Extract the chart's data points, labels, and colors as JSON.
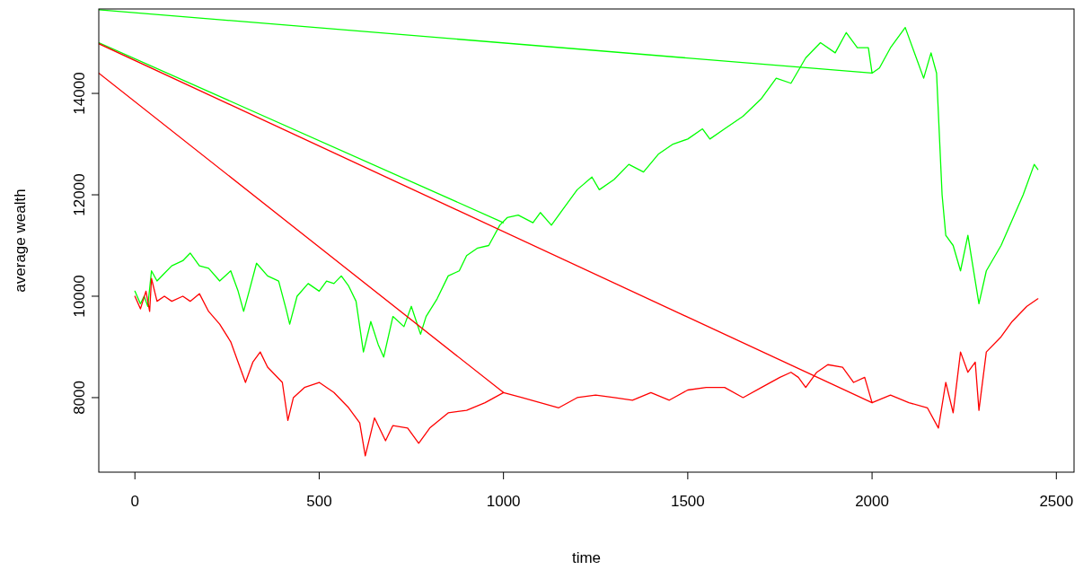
{
  "chart_data": {
    "type": "line",
    "xlabel": "time",
    "ylabel": "average wealth",
    "xlim": [
      -98,
      2548
    ],
    "ylim": [
      6530,
      15665
    ],
    "xticks": [
      0,
      500,
      1000,
      1500,
      2000,
      2500
    ],
    "yticks": [
      8000,
      10000,
      12000,
      14000
    ],
    "grid": false,
    "marker": "none",
    "line_style": "solid",
    "series": [
      {
        "color": "#00ff00",
        "x": [
          0,
          15,
          25,
          35,
          45,
          60,
          80,
          100,
          130,
          150,
          175,
          200,
          230,
          260,
          280,
          295,
          310,
          330,
          360,
          390,
          410,
          420,
          440,
          470,
          500,
          520,
          540,
          560,
          580,
          600,
          620,
          640,
          660,
          675,
          700,
          730,
          750,
          775,
          790,
          820,
          850,
          880,
          900,
          930,
          960,
          990,
          1010,
          1040,
          1080,
          1100,
          1130,
          1160,
          1200,
          1240,
          1260,
          1300,
          1340,
          1380,
          1420,
          1460,
          1500,
          1540,
          1560,
          1600,
          1650,
          1700,
          1740,
          1780,
          1820,
          1860,
          1900,
          1930,
          1960,
          1990,
          2000,
          2020,
          2050,
          2090,
          2120,
          2140,
          2160,
          2175,
          2190,
          2200,
          2220,
          2240,
          2260,
          2280,
          2290,
          2310,
          2350,
          2380,
          2410,
          2440,
          2450
        ],
        "values": [
          10100,
          9850,
          10000,
          9800,
          10500,
          10300,
          10450,
          10600,
          10700,
          10850,
          10600,
          10550,
          10300,
          10500,
          10100,
          9700,
          10100,
          10650,
          10400,
          10300,
          9750,
          9450,
          10000,
          10250,
          10100,
          10300,
          10250,
          10400,
          10200,
          9900,
          8900,
          9500,
          9050,
          8800,
          9600,
          9400,
          9800,
          9250,
          9600,
          9950,
          10400,
          10500,
          10800,
          10950,
          11000,
          11400,
          11550,
          11600,
          11450,
          11650,
          11400,
          11700,
          12100,
          12350,
          12100,
          12300,
          12600,
          12450,
          12800,
          13000,
          13100,
          13300,
          13100,
          13300,
          13550,
          13900,
          14300,
          14200,
          14700,
          15000,
          14800,
          15200,
          14900,
          14900,
          14400,
          14500,
          14900,
          15300,
          14700,
          14300,
          14800,
          14400,
          12000,
          11200,
          11000,
          10500,
          11200,
          10300,
          9850,
          10500,
          11000,
          11500,
          12000,
          12600,
          12500
        ]
      },
      {
        "color": "#ff0000",
        "x": [
          0,
          15,
          30,
          40,
          45,
          60,
          80,
          100,
          130,
          150,
          175,
          200,
          230,
          260,
          280,
          300,
          320,
          340,
          360,
          400,
          415,
          430,
          460,
          500,
          540,
          580,
          610,
          625,
          650,
          680,
          700,
          740,
          770,
          800,
          850,
          900,
          950,
          1000,
          1050,
          1100,
          1150,
          1200,
          1250,
          1300,
          1350,
          1400,
          1450,
          1500,
          1550,
          1600,
          1650,
          1700,
          1750,
          1780,
          1800,
          1820,
          1850,
          1880,
          1920,
          1950,
          1980,
          2000,
          2050,
          2100,
          2150,
          2180,
          2200,
          2220,
          2240,
          2260,
          2280,
          2290,
          2310,
          2350,
          2380,
          2420,
          2450
        ],
        "values": [
          10000,
          9750,
          10100,
          9700,
          10350,
          9900,
          10000,
          9900,
          10000,
          9900,
          10050,
          9700,
          9450,
          9100,
          8700,
          8300,
          8700,
          8900,
          8600,
          8300,
          7550,
          8000,
          8200,
          8300,
          8100,
          7800,
          7500,
          6850,
          7600,
          7150,
          7450,
          7400,
          7100,
          7400,
          7700,
          7750,
          7900,
          8100,
          8000,
          7900,
          7800,
          8000,
          8050,
          8000,
          7950,
          8100,
          7950,
          8150,
          8200,
          8200,
          8000,
          8200,
          8400,
          8500,
          8400,
          8200,
          8500,
          8650,
          8600,
          8300,
          8400,
          7900,
          8050,
          7900,
          7800,
          7400,
          8300,
          7700,
          8900,
          8500,
          8700,
          7750,
          8900,
          9200,
          9500,
          9800,
          9950
        ]
      },
      {
        "color": "#00ff00",
        "x": [
          -98,
          2000
        ],
        "values": [
          15650,
          14400
        ]
      },
      {
        "color": "#00ff00",
        "x": [
          -98,
          1000
        ],
        "values": [
          15000,
          11450
        ]
      },
      {
        "color": "#ff0000",
        "x": [
          -98,
          2000
        ],
        "values": [
          14980,
          7900
        ]
      },
      {
        "color": "#ff0000",
        "x": [
          -98,
          1000
        ],
        "values": [
          14400,
          8100
        ]
      }
    ]
  }
}
